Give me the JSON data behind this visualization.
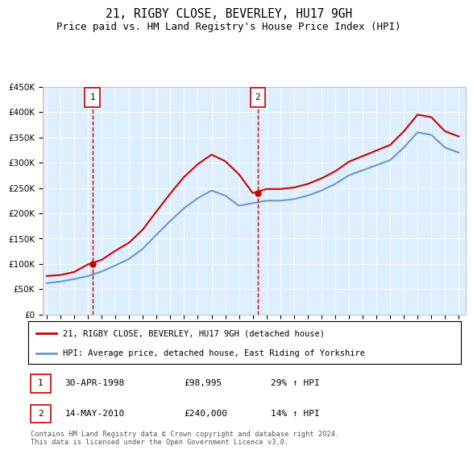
{
  "title": "21, RIGBY CLOSE, BEVERLEY, HU17 9GH",
  "subtitle": "Price paid vs. HM Land Registry's House Price Index (HPI)",
  "title_fontsize": 10.5,
  "subtitle_fontsize": 9,
  "background_color": "#ffffff",
  "plot_bg_color": "#ddeeff",
  "grid_color": "#ffffff",
  "ylim": [
    0,
    450000
  ],
  "yticks": [
    0,
    50000,
    100000,
    150000,
    200000,
    250000,
    300000,
    350000,
    400000,
    450000
  ],
  "ytick_labels": [
    "£0",
    "£50K",
    "£100K",
    "£150K",
    "£200K",
    "£250K",
    "£300K",
    "£350K",
    "£400K",
    "£450K"
  ],
  "xlim_start": 1994.7,
  "xlim_end": 2025.5,
  "sale1_x": 1998.33,
  "sale1_y": 98995,
  "sale1_label": "1",
  "sale1_date": "30-APR-1998",
  "sale1_price": "£98,995",
  "sale1_hpi": "29% ↑ HPI",
  "sale2_x": 2010.37,
  "sale2_y": 240000,
  "sale2_label": "2",
  "sale2_date": "14-MAY-2010",
  "sale2_price": "£240,000",
  "sale2_hpi": "14% ↑ HPI",
  "red_line_color": "#cc0000",
  "blue_line_color": "#6699cc",
  "vline_color": "#cc0000",
  "marker_box_color": "#cc0000",
  "legend_label_red": "21, RIGBY CLOSE, BEVERLEY, HU17 9GH (detached house)",
  "legend_label_blue": "HPI: Average price, detached house, East Riding of Yorkshire",
  "footer": "Contains HM Land Registry data © Crown copyright and database right 2024.\nThis data is licensed under the Open Government Licence v3.0.",
  "hpi_years": [
    1995,
    1996,
    1997,
    1998,
    1999,
    2000,
    2001,
    2002,
    2003,
    2004,
    2005,
    2006,
    2007,
    2008,
    2009,
    2010,
    2011,
    2012,
    2013,
    2014,
    2015,
    2016,
    2017,
    2018,
    2019,
    2020,
    2021,
    2022,
    2023,
    2024,
    2025
  ],
  "hpi_values": [
    62000,
    65000,
    70000,
    76000,
    85000,
    97000,
    110000,
    130000,
    158000,
    185000,
    210000,
    230000,
    245000,
    235000,
    215000,
    220000,
    225000,
    225000,
    228000,
    235000,
    245000,
    258000,
    275000,
    285000,
    295000,
    305000,
    330000,
    360000,
    355000,
    330000,
    320000
  ],
  "red_years": [
    1995,
    1996,
    1997,
    1998,
    1999,
    2000,
    2001,
    2002,
    2003,
    2004,
    2005,
    2006,
    2007,
    2008,
    2009,
    2010,
    2011,
    2012,
    2013,
    2014,
    2015,
    2016,
    2017,
    2018,
    2019,
    2020,
    2021,
    2022,
    2023,
    2024,
    2025
  ],
  "red_values": [
    76000,
    78000,
    84000,
    98995,
    108000,
    126000,
    142000,
    168000,
    204000,
    239000,
    272000,
    297000,
    316000,
    303000,
    277000,
    240000,
    248000,
    248000,
    251000,
    258000,
    269000,
    283000,
    302000,
    313000,
    324000,
    335000,
    362000,
    395000,
    390000,
    362000,
    352000
  ]
}
